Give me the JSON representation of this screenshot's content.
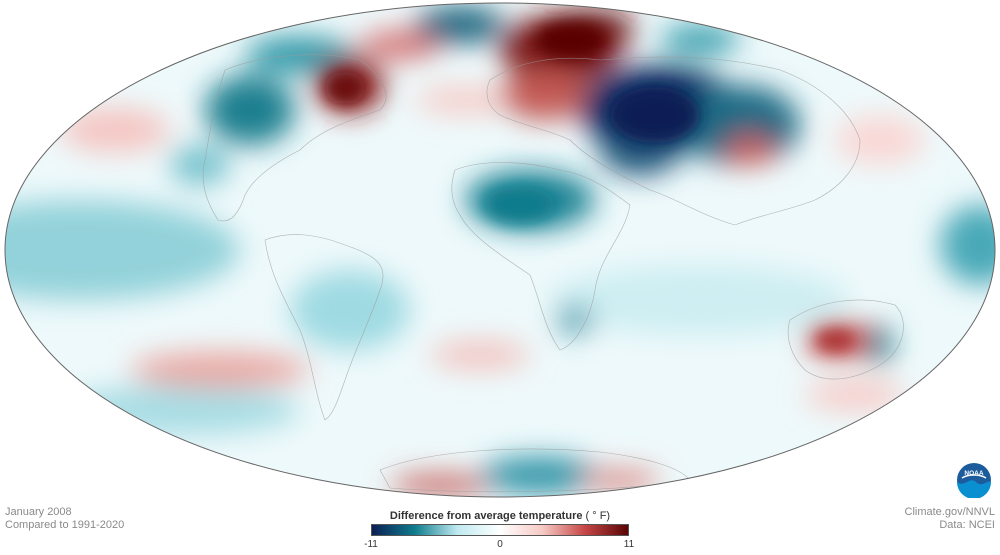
{
  "caption_left": {
    "line1": "January 2008",
    "line2": "Compared to 1991-2020"
  },
  "caption_right": {
    "line1": "Climate.gov/NNVL",
    "line2": "Data: NCEI"
  },
  "legend": {
    "title": "Difference from average temperature",
    "unit": "( ° F)",
    "min_label": "-11",
    "mid_label": "0",
    "max_label": "11",
    "colors": [
      "#0b1f55",
      "#0f7c8c",
      "#bfeaf0",
      "#ffffff",
      "#f6c9c4",
      "#c54545",
      "#5a0505"
    ]
  },
  "logo": {
    "text": "NOAA",
    "icon": "noaa-logo-icon"
  }
}
